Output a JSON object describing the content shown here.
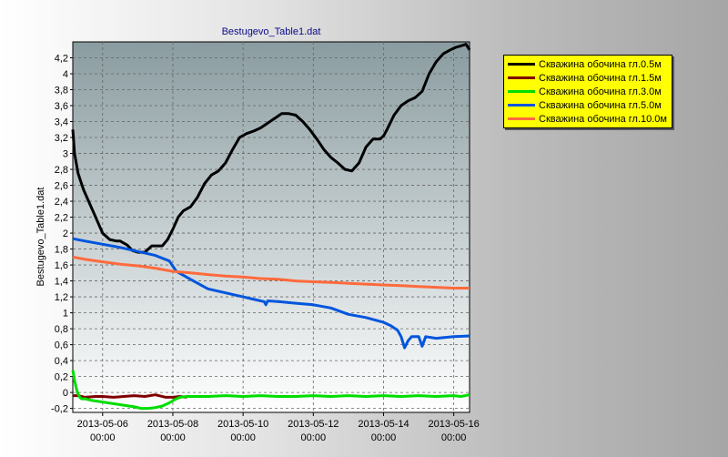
{
  "chart_data": {
    "type": "line",
    "title": "Bestugevo_Table1.dat",
    "xlabel": "",
    "ylabel": "Bestugevo_Table1.dat",
    "x_ticks": [
      "2013-05-06|00:00",
      "2013-05-08|00:00",
      "2013-05-10|00:00",
      "2013-05-12|00:00",
      "2013-05-14|00:00",
      "2013-05-16|00:00"
    ],
    "x_tick_values": [
      1,
      3,
      5,
      7,
      9,
      11
    ],
    "y_ticks": [
      "-0,2",
      "0",
      "0,2",
      "0,4",
      "0,6",
      "0,8",
      "1",
      "1,2",
      "1,4",
      "1,6",
      "1,8",
      "2",
      "2,2",
      "2,4",
      "2,6",
      "2,8",
      "3",
      "3,2",
      "3,4",
      "3,6",
      "3,8",
      "4",
      "4,2"
    ],
    "xlim": [
      0.15,
      11.45
    ],
    "ylim": [
      -0.25,
      4.4
    ],
    "grid": true,
    "legend_position": "top-right-outside",
    "background": {
      "top": "#8a9ca0",
      "bottom": "#ffffff"
    },
    "series": [
      {
        "name": "Скважина обочина гл.0.5м",
        "color": "#000000",
        "x": [
          0.15,
          0.2,
          0.3,
          0.45,
          0.6,
          0.75,
          0.9,
          1.0,
          1.2,
          1.4,
          1.5,
          1.7,
          1.85,
          2.0,
          2.2,
          2.4,
          2.5,
          2.7,
          2.85,
          3.0,
          3.15,
          3.3,
          3.5,
          3.7,
          3.9,
          4.1,
          4.3,
          4.5,
          4.7,
          4.9,
          5.1,
          5.3,
          5.5,
          5.7,
          5.9,
          6.1,
          6.3,
          6.5,
          6.7,
          6.9,
          7.1,
          7.3,
          7.5,
          7.7,
          7.9,
          8.1,
          8.3,
          8.5,
          8.7,
          8.9,
          9.0,
          9.1,
          9.3,
          9.5,
          9.7,
          9.9,
          10.1,
          10.3,
          10.5,
          10.7,
          10.9,
          11.05,
          11.2,
          11.35,
          11.45
        ],
        "y": [
          3.3,
          3.0,
          2.75,
          2.55,
          2.4,
          2.25,
          2.1,
          2.0,
          1.92,
          1.9,
          1.9,
          1.85,
          1.78,
          1.76,
          1.76,
          1.84,
          1.84,
          1.84,
          1.92,
          2.05,
          2.2,
          2.28,
          2.33,
          2.45,
          2.62,
          2.73,
          2.78,
          2.88,
          3.05,
          3.2,
          3.25,
          3.28,
          3.32,
          3.38,
          3.44,
          3.5,
          3.5,
          3.48,
          3.4,
          3.3,
          3.18,
          3.05,
          2.95,
          2.88,
          2.8,
          2.78,
          2.88,
          3.08,
          3.18,
          3.18,
          3.22,
          3.3,
          3.48,
          3.6,
          3.66,
          3.7,
          3.78,
          4.0,
          4.15,
          4.25,
          4.3,
          4.33,
          4.35,
          4.37,
          4.3
        ]
      },
      {
        "name": "Скважина обочина гл.1.5м",
        "color": "#800000",
        "x": [
          0.15,
          0.3,
          0.5,
          0.8,
          1.0,
          1.3,
          1.6,
          1.9,
          2.2,
          2.5,
          2.8,
          3.0,
          3.2,
          3.4
        ],
        "y": [
          -0.04,
          -0.04,
          -0.06,
          -0.05,
          -0.05,
          -0.06,
          -0.05,
          -0.04,
          -0.05,
          -0.03,
          -0.06,
          -0.06,
          -0.05,
          -0.06
        ]
      },
      {
        "name": "Скважина обочина гл.3.0м",
        "color": "#00dd00",
        "x": [
          0.15,
          0.2,
          0.25,
          0.3,
          0.35,
          0.4,
          0.5,
          0.7,
          1.0,
          1.3,
          1.6,
          1.9,
          2.1,
          2.3,
          2.5,
          2.7,
          2.9,
          3.05,
          3.2,
          3.4,
          3.7,
          4.0,
          4.5,
          5.0,
          5.5,
          6.0,
          6.5,
          7.0,
          7.5,
          8.0,
          8.5,
          9.0,
          9.5,
          10.0,
          10.5,
          11.0,
          11.2,
          11.45
        ],
        "y": [
          0.28,
          0.15,
          0.05,
          -0.02,
          -0.06,
          -0.08,
          -0.08,
          -0.1,
          -0.12,
          -0.14,
          -0.16,
          -0.18,
          -0.2,
          -0.2,
          -0.19,
          -0.17,
          -0.13,
          -0.09,
          -0.06,
          -0.05,
          -0.05,
          -0.05,
          -0.04,
          -0.05,
          -0.04,
          -0.05,
          -0.05,
          -0.04,
          -0.05,
          -0.04,
          -0.05,
          -0.04,
          -0.05,
          -0.04,
          -0.05,
          -0.04,
          -0.05,
          -0.03
        ]
      },
      {
        "name": "Скважина обочина гл.5.0м",
        "color": "#0055dd",
        "x": [
          0.15,
          0.5,
          1.0,
          1.5,
          2.0,
          2.5,
          2.9,
          3.1,
          3.5,
          4.0,
          4.5,
          5.0,
          5.5,
          5.6,
          5.65,
          5.7,
          6.0,
          6.5,
          7.0,
          7.5,
          8.0,
          8.5,
          9.0,
          9.2,
          9.4,
          9.5,
          9.6,
          9.7,
          9.8,
          10.0,
          10.1,
          10.2,
          10.5,
          11.0,
          11.45
        ],
        "y": [
          1.93,
          1.9,
          1.86,
          1.82,
          1.77,
          1.72,
          1.65,
          1.52,
          1.42,
          1.3,
          1.25,
          1.2,
          1.15,
          1.14,
          1.1,
          1.15,
          1.14,
          1.12,
          1.1,
          1.06,
          0.98,
          0.94,
          0.88,
          0.84,
          0.78,
          0.7,
          0.56,
          0.65,
          0.7,
          0.7,
          0.58,
          0.7,
          0.68,
          0.7,
          0.71
        ]
      },
      {
        "name": "Скважина обочина гл.10.0м",
        "color": "#ff6a3c",
        "x": [
          0.15,
          0.5,
          1.0,
          1.5,
          2.0,
          2.5,
          3.0,
          3.5,
          4.0,
          4.5,
          5.0,
          5.5,
          6.0,
          6.5,
          7.0,
          7.5,
          8.0,
          8.5,
          9.0,
          9.5,
          10.0,
          10.5,
          11.0,
          11.45
        ],
        "y": [
          1.7,
          1.67,
          1.64,
          1.61,
          1.59,
          1.56,
          1.52,
          1.5,
          1.48,
          1.46,
          1.45,
          1.43,
          1.42,
          1.4,
          1.39,
          1.38,
          1.37,
          1.36,
          1.35,
          1.34,
          1.33,
          1.32,
          1.31,
          1.31
        ]
      }
    ]
  }
}
